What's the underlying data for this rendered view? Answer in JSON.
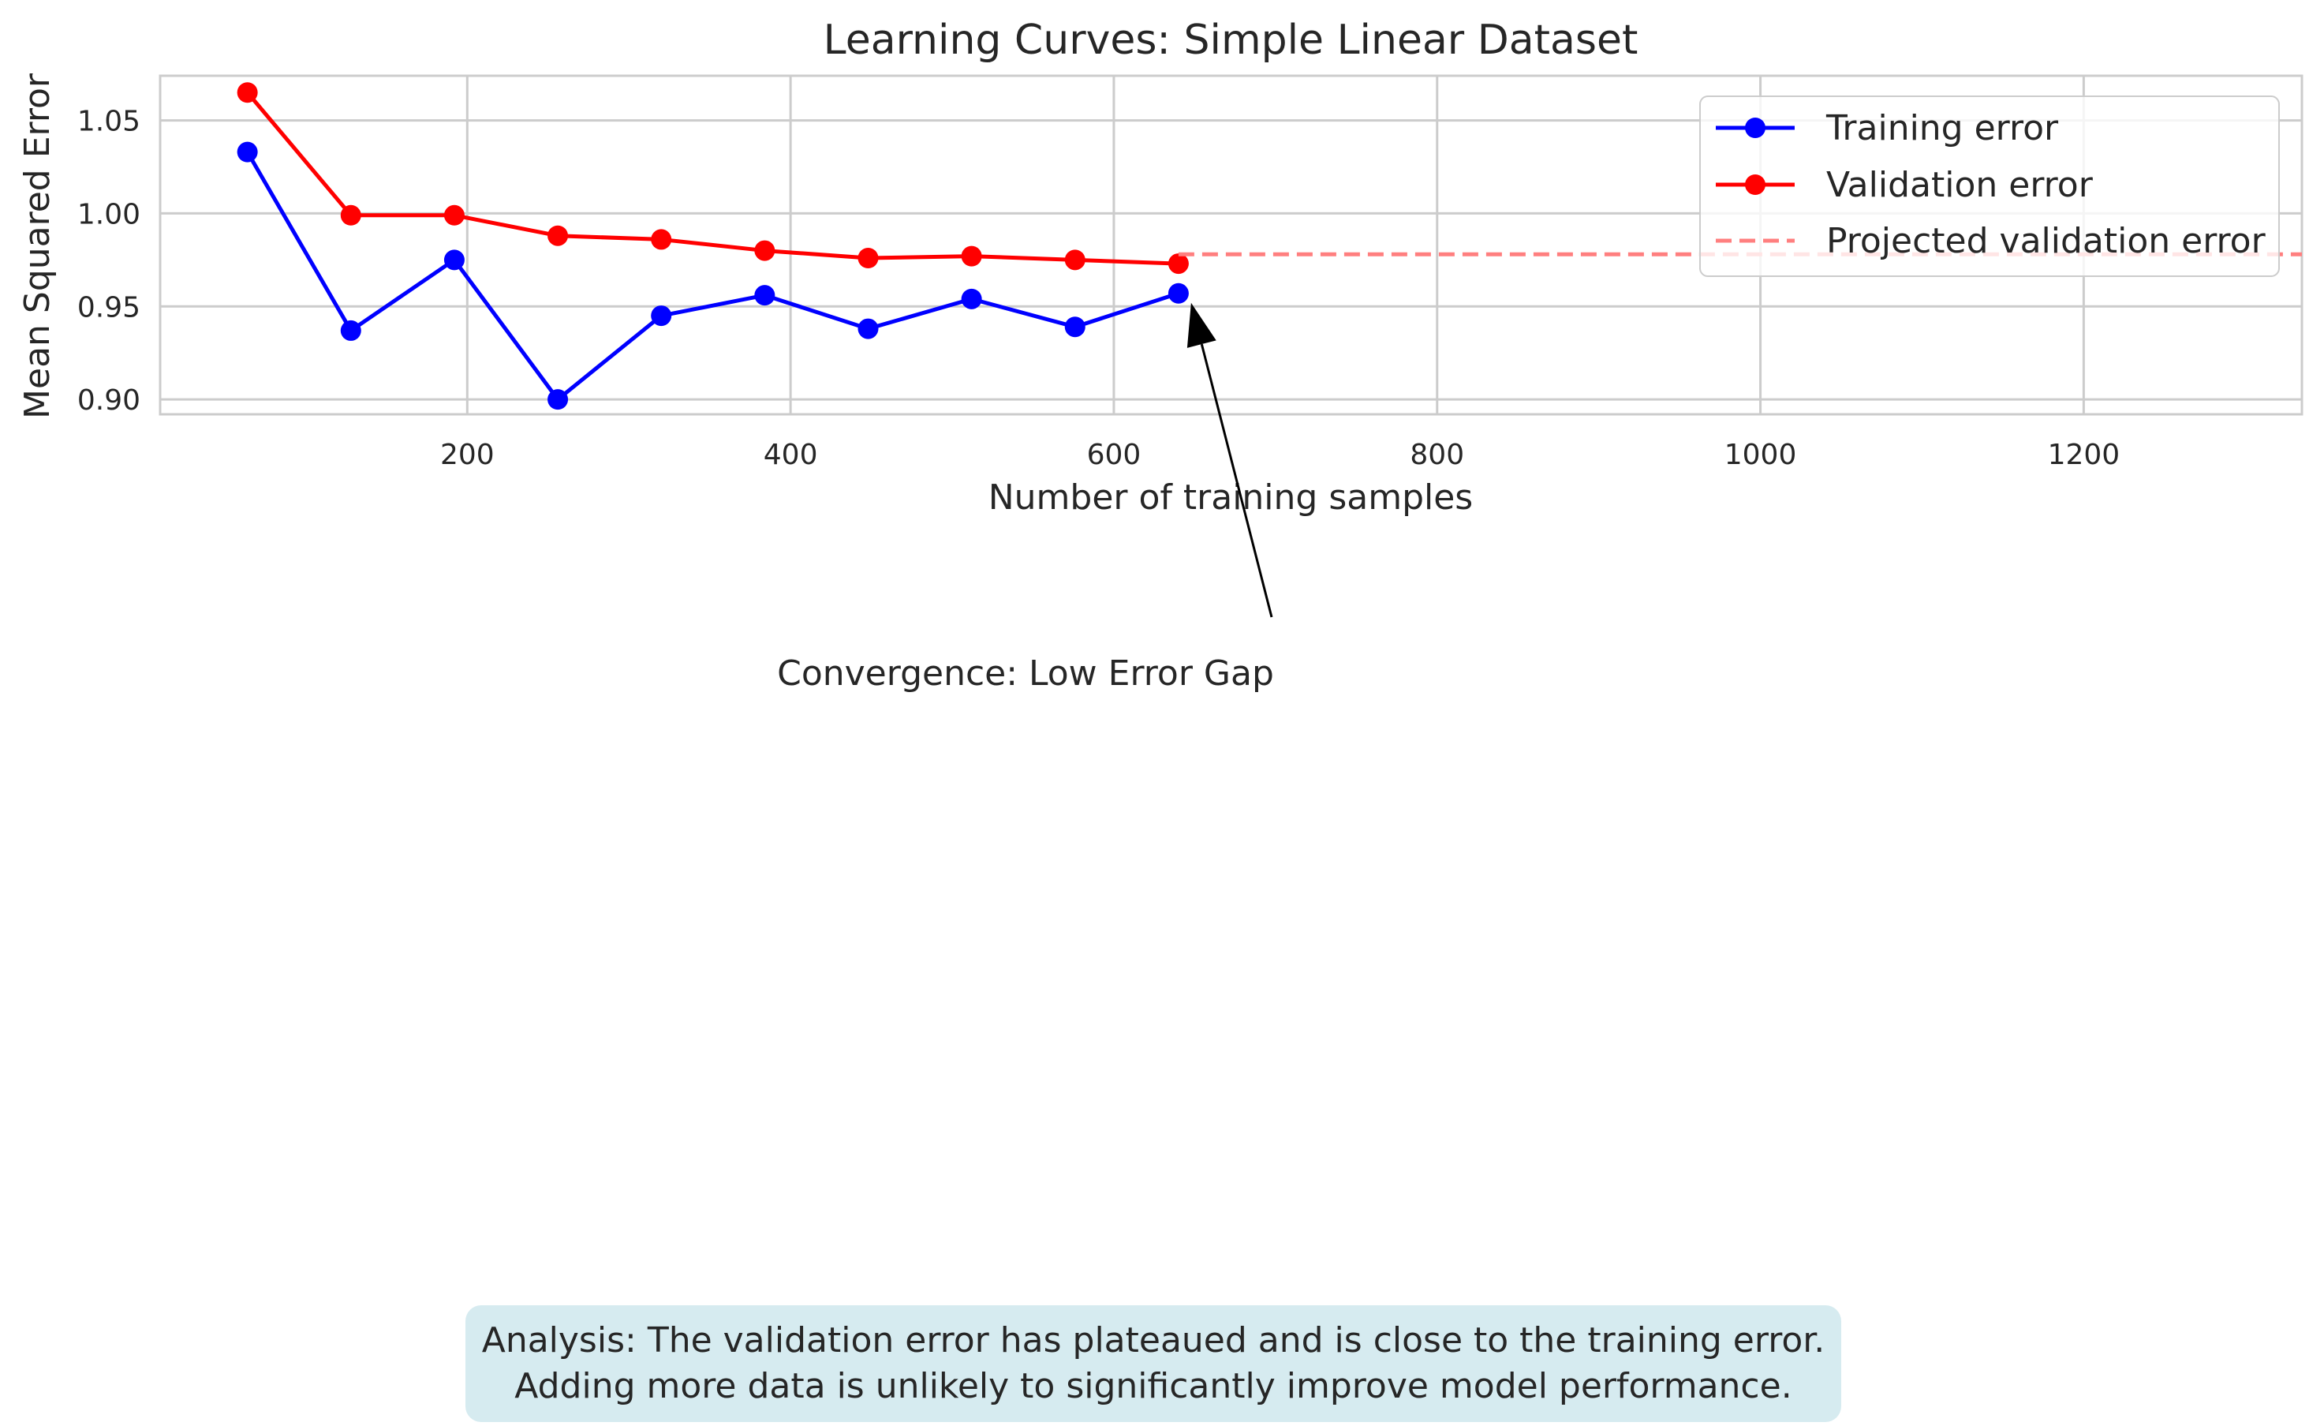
{
  "chart_data": {
    "type": "line",
    "title": "Learning Curves: Simple Linear Dataset",
    "xlabel": "Number of training samples",
    "ylabel": "Mean Squared Error",
    "xlim": [
      10,
      1335
    ],
    "ylim": [
      0.892,
      1.074
    ],
    "xticks": [
      200,
      400,
      600,
      800,
      1000,
      1200
    ],
    "xtick_labels": [
      "200",
      "400",
      "600",
      "800",
      "1000",
      "1200"
    ],
    "yticks": [
      0.9,
      0.95,
      1.0,
      1.05
    ],
    "ytick_labels": [
      "0.90",
      "0.95",
      "1.00",
      "1.05"
    ],
    "grid": true,
    "legend_position": "top-right",
    "series": [
      {
        "name": "Training error",
        "color": "#0000ff",
        "style": "solid-markers",
        "x": [
          64,
          128,
          192,
          256,
          320,
          384,
          448,
          512,
          576,
          640
        ],
        "y": [
          1.033,
          0.937,
          0.975,
          0.9,
          0.945,
          0.956,
          0.938,
          0.954,
          0.939,
          0.957
        ]
      },
      {
        "name": "Validation error",
        "color": "#ff0000",
        "style": "solid-markers",
        "x": [
          64,
          128,
          192,
          256,
          320,
          384,
          448,
          512,
          576,
          640
        ],
        "y": [
          1.065,
          0.999,
          0.999,
          0.988,
          0.986,
          0.98,
          0.976,
          0.977,
          0.975,
          0.973
        ]
      },
      {
        "name": "Projected validation error",
        "color": "#ff7f7f",
        "style": "dashed",
        "x": [
          640,
          1335
        ],
        "y": [
          0.978,
          0.978
        ]
      }
    ],
    "annotation": {
      "text": "Convergence: Low Error Gap",
      "point": {
        "x": 640,
        "y": 0.957
      }
    },
    "analysis": {
      "line1": "Analysis: The validation error has plateaued and is close to the training error.",
      "line2": "Adding more data is unlikely to significantly improve model performance."
    }
  }
}
